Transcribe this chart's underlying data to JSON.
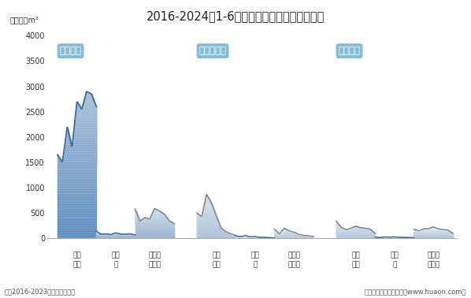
{
  "title": "2016-2024年1-6月青海省房地产施工面积情况",
  "unit_label": "单位：万m²",
  "note_left": "注：2016-2023年为全年度数据",
  "note_right": "制图：华经产业研究院（www.huaon.com）",
  "ylim": [
    0,
    4000
  ],
  "yticks": [
    0,
    500,
    1000,
    1500,
    2000,
    2500,
    3000,
    3500,
    4000
  ],
  "bg_color": "#ffffff",
  "label_box_color": "#7ab8d4",
  "groups": [
    {
      "name": "施工面积",
      "sub_categories": [
        {
          "name_row1": "商品",
          "name_row2": "住宅",
          "values": [
            1650,
            1500,
            2200,
            1800,
            2700,
            2550,
            2900,
            2850,
            2600
          ],
          "fill_color": "#a8bfd8",
          "fill_alpha": 0.85,
          "line_color": "#3a6da0",
          "line_width": 1.3,
          "gradient_bot": "#5a8abf"
        },
        {
          "name_row1": "办公",
          "name_row2": "楼",
          "values": [
            140,
            80,
            90,
            75,
            110,
            85,
            80,
            90,
            65
          ],
          "fill_color": "#c8d8ea",
          "fill_alpha": 0.75,
          "line_color": "#3a6da0",
          "line_width": 1.2,
          "gradient_bot": "#8aaac8"
        },
        {
          "name_row1": "商业营",
          "name_row2": "业用房",
          "values": [
            580,
            340,
            410,
            380,
            590,
            540,
            480,
            350,
            290
          ],
          "fill_color": "#d0dff0",
          "fill_alpha": 0.75,
          "line_color": "#888888",
          "line_width": 1.2,
          "gradient_bot": "#9ab4cc"
        }
      ]
    },
    {
      "name": "新开工面积",
      "sub_categories": [
        {
          "name_row1": "商品",
          "name_row2": "住宅",
          "values": [
            500,
            430,
            870,
            700,
            450,
            200,
            130,
            90,
            60
          ],
          "fill_color": "#d8e4ef",
          "fill_alpha": 0.8,
          "line_color": "#888888",
          "line_width": 1.2,
          "gradient_bot": "#b0c4d8"
        },
        {
          "name_row1": "办公",
          "name_row2": "楼",
          "values": [
            50,
            35,
            55,
            30,
            35,
            20,
            20,
            15,
            10
          ],
          "fill_color": "#dce8f2",
          "fill_alpha": 0.75,
          "line_color": "#3a6da0",
          "line_width": 1.1,
          "gradient_bot": "#b0c8de"
        },
        {
          "name_row1": "商业营",
          "name_row2": "业用房",
          "values": [
            180,
            90,
            200,
            150,
            120,
            80,
            60,
            50,
            40
          ],
          "fill_color": "#dce8f2",
          "fill_alpha": 0.75,
          "line_color": "#888888",
          "line_width": 1.1,
          "gradient_bot": "#b0c8de"
        }
      ]
    },
    {
      "name": "竣工面积",
      "sub_categories": [
        {
          "name_row1": "商品",
          "name_row2": "住宅",
          "values": [
            340,
            220,
            170,
            200,
            240,
            210,
            200,
            180,
            100
          ],
          "fill_color": "#dce8f2",
          "fill_alpha": 0.8,
          "line_color": "#888888",
          "line_width": 1.2,
          "gradient_bot": "#b0c8de"
        },
        {
          "name_row1": "办公",
          "name_row2": "楼",
          "values": [
            25,
            18,
            28,
            25,
            30,
            22,
            20,
            18,
            12
          ],
          "fill_color": "#dce8f2",
          "fill_alpha": 0.75,
          "line_color": "#3a6da0",
          "line_width": 1.1,
          "gradient_bot": "#b0c8de"
        },
        {
          "name_row1": "商业营",
          "name_row2": "业用房",
          "values": [
            180,
            150,
            190,
            190,
            230,
            190,
            175,
            165,
            100
          ],
          "fill_color": "#dce8f2",
          "fill_alpha": 0.75,
          "line_color": "#888888",
          "line_width": 1.1,
          "gradient_bot": "#b0c8de"
        }
      ]
    }
  ]
}
